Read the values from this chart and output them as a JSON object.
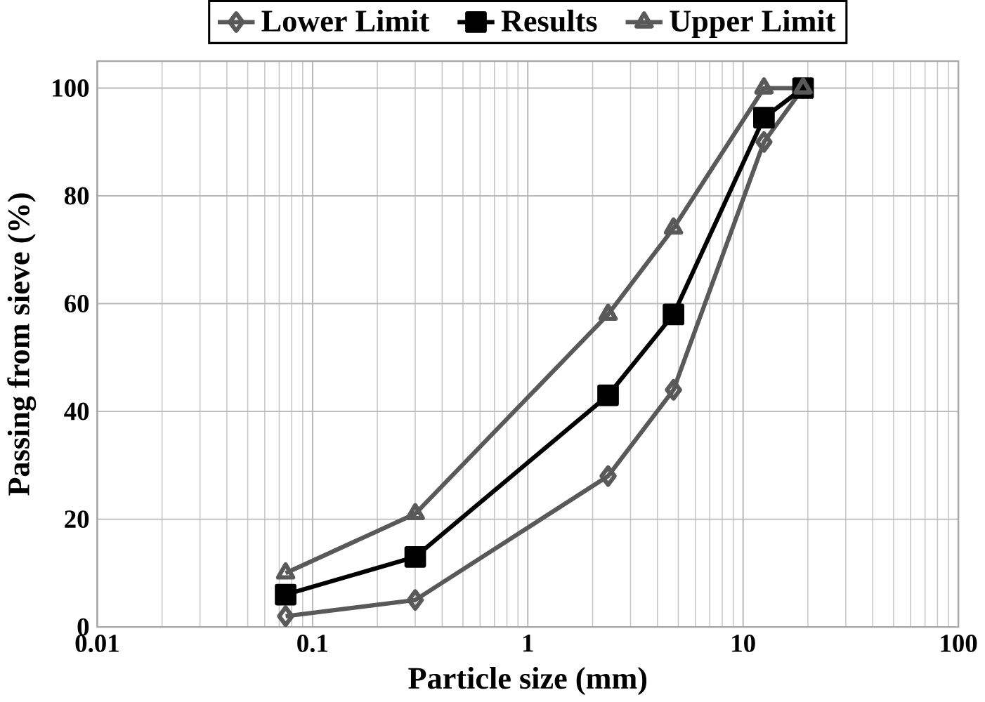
{
  "chart_data": {
    "type": "line",
    "xlabel": "Particle size (mm)",
    "ylabel": "Passing from sieve (%)",
    "log": "x",
    "xlim": [
      0.01,
      100
    ],
    "xticks": [
      0.01,
      0.1,
      1,
      10,
      100
    ],
    "ylim": [
      0,
      105
    ],
    "yticks": [
      0,
      20,
      40,
      60,
      80,
      100
    ],
    "grid": true,
    "legend": "top",
    "line_style": "solid",
    "series": [
      {
        "name": "Lower Limit",
        "color": "#595959",
        "marker": "diamond",
        "x": [
          0.075,
          0.3,
          2.36,
          4.75,
          12.5,
          19
        ],
        "values": [
          2,
          5,
          28,
          44,
          90,
          100
        ]
      },
      {
        "name": "Results",
        "color": "#000000",
        "marker": "square",
        "x": [
          0.075,
          0.3,
          2.36,
          4.75,
          12.5,
          19
        ],
        "values": [
          6,
          13,
          43,
          58,
          94.5,
          100
        ]
      },
      {
        "name": "Upper Limit",
        "color": "#595959",
        "marker": "triangle",
        "x": [
          0.075,
          0.3,
          2.36,
          4.75,
          12.5,
          19
        ],
        "values": [
          10,
          21,
          58,
          74,
          100,
          100
        ]
      }
    ]
  }
}
